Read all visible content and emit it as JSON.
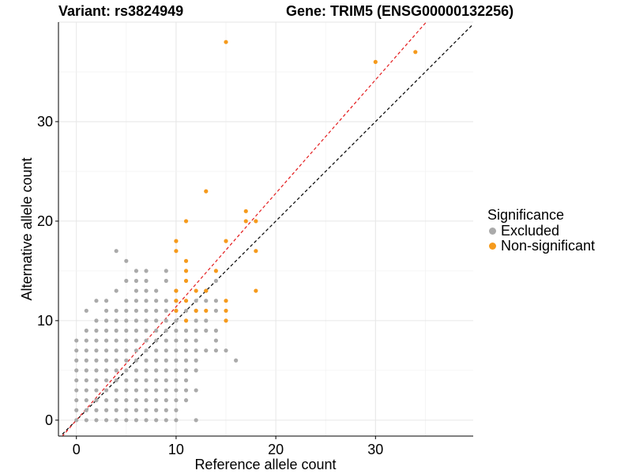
{
  "title_left": "Variant: rs3824949",
  "title_right": "Gene: TRIM5 (ENSG00000132256)",
  "chart_data": {
    "type": "scatter",
    "xlabel": "Reference allele count",
    "ylabel": "Alternative allele count",
    "xlim": [
      -1.8,
      39.8
    ],
    "ylim": [
      -1.6,
      40
    ],
    "x_ticks": [
      0,
      10,
      20,
      30
    ],
    "y_ticks": [
      0,
      10,
      20,
      30
    ],
    "x_tick_labels": [
      "0",
      "10",
      "20",
      "30"
    ],
    "y_tick_labels": [
      "0",
      "10",
      "20",
      "30"
    ],
    "grid": true,
    "legend": {
      "title": "Significance",
      "placement": "right",
      "entries": [
        {
          "label": "Excluded",
          "color": "#aaaaaa"
        },
        {
          "label": "Non-significant",
          "color": "#f59a1c"
        }
      ]
    },
    "reference_lines": [
      {
        "slope": 1.0,
        "intercept": 0,
        "color": "#000000",
        "style": "dashed"
      },
      {
        "slope": 1.14,
        "intercept": 0,
        "color": "#e31a1c",
        "style": "dashed"
      }
    ],
    "series": [
      {
        "name": "Excluded",
        "color": "#aaaaaa",
        "points": [
          [
            0,
            0
          ],
          [
            0,
            1
          ],
          [
            0,
            2
          ],
          [
            0,
            3
          ],
          [
            0,
            4
          ],
          [
            0,
            5
          ],
          [
            0,
            6
          ],
          [
            0,
            7
          ],
          [
            0,
            8
          ],
          [
            1,
            0
          ],
          [
            1,
            1
          ],
          [
            1,
            2
          ],
          [
            1,
            3
          ],
          [
            1,
            4
          ],
          [
            1,
            5
          ],
          [
            1,
            6
          ],
          [
            1,
            7
          ],
          [
            1,
            8
          ],
          [
            1,
            9
          ],
          [
            1,
            11
          ],
          [
            2,
            0
          ],
          [
            2,
            1
          ],
          [
            2,
            2
          ],
          [
            2,
            3
          ],
          [
            2,
            4
          ],
          [
            2,
            5
          ],
          [
            2,
            6
          ],
          [
            2,
            7
          ],
          [
            2,
            8
          ],
          [
            2,
            9
          ],
          [
            2,
            10
          ],
          [
            2,
            12
          ],
          [
            3,
            0
          ],
          [
            3,
            1
          ],
          [
            3,
            2
          ],
          [
            3,
            3
          ],
          [
            3,
            4
          ],
          [
            3,
            5
          ],
          [
            3,
            6
          ],
          [
            3,
            7
          ],
          [
            3,
            8
          ],
          [
            3,
            9
          ],
          [
            3,
            10
          ],
          [
            3,
            11
          ],
          [
            3,
            12
          ],
          [
            4,
            0
          ],
          [
            4,
            1
          ],
          [
            4,
            2
          ],
          [
            4,
            3
          ],
          [
            4,
            4
          ],
          [
            4,
            5
          ],
          [
            4,
            6
          ],
          [
            4,
            7
          ],
          [
            4,
            8
          ],
          [
            4,
            9
          ],
          [
            4,
            10
          ],
          [
            4,
            11
          ],
          [
            4,
            13
          ],
          [
            4,
            17
          ],
          [
            5,
            0
          ],
          [
            5,
            1
          ],
          [
            5,
            2
          ],
          [
            5,
            3
          ],
          [
            5,
            4
          ],
          [
            5,
            5
          ],
          [
            5,
            6
          ],
          [
            5,
            7
          ],
          [
            5,
            8
          ],
          [
            5,
            9
          ],
          [
            5,
            10
          ],
          [
            5,
            11
          ],
          [
            5,
            12
          ],
          [
            5,
            14
          ],
          [
            5,
            16
          ],
          [
            6,
            0
          ],
          [
            6,
            1
          ],
          [
            6,
            2
          ],
          [
            6,
            3
          ],
          [
            6,
            4
          ],
          [
            6,
            5
          ],
          [
            6,
            6
          ],
          [
            6,
            7
          ],
          [
            6,
            8
          ],
          [
            6,
            9
          ],
          [
            6,
            10
          ],
          [
            6,
            11
          ],
          [
            6,
            12
          ],
          [
            6,
            13
          ],
          [
            6,
            14
          ],
          [
            6,
            15
          ],
          [
            7,
            0
          ],
          [
            7,
            1
          ],
          [
            7,
            2
          ],
          [
            7,
            3
          ],
          [
            7,
            4
          ],
          [
            7,
            5
          ],
          [
            7,
            6
          ],
          [
            7,
            7
          ],
          [
            7,
            8
          ],
          [
            7,
            9
          ],
          [
            7,
            10
          ],
          [
            7,
            11
          ],
          [
            7,
            12
          ],
          [
            7,
            13
          ],
          [
            7,
            14
          ],
          [
            7,
            15
          ],
          [
            8,
            0
          ],
          [
            8,
            1
          ],
          [
            8,
            2
          ],
          [
            8,
            3
          ],
          [
            8,
            4
          ],
          [
            8,
            5
          ],
          [
            8,
            6
          ],
          [
            8,
            7
          ],
          [
            8,
            8
          ],
          [
            8,
            9
          ],
          [
            8,
            10
          ],
          [
            8,
            11
          ],
          [
            8,
            12
          ],
          [
            8,
            13
          ],
          [
            9,
            0
          ],
          [
            9,
            1
          ],
          [
            9,
            2
          ],
          [
            9,
            3
          ],
          [
            9,
            4
          ],
          [
            9,
            5
          ],
          [
            9,
            6
          ],
          [
            9,
            7
          ],
          [
            9,
            8
          ],
          [
            9,
            9
          ],
          [
            9,
            10
          ],
          [
            9,
            11
          ],
          [
            9,
            12
          ],
          [
            9,
            14
          ],
          [
            9,
            15
          ],
          [
            10,
            0
          ],
          [
            10,
            1
          ],
          [
            10,
            2
          ],
          [
            10,
            3
          ],
          [
            10,
            4
          ],
          [
            10,
            5
          ],
          [
            10,
            6
          ],
          [
            10,
            7
          ],
          [
            10,
            8
          ],
          [
            10,
            9
          ],
          [
            10,
            10
          ],
          [
            10,
            11
          ],
          [
            10,
            12
          ],
          [
            10,
            13
          ],
          [
            11,
            2
          ],
          [
            11,
            3
          ],
          [
            11,
            4
          ],
          [
            11,
            5
          ],
          [
            11,
            6
          ],
          [
            11,
            7
          ],
          [
            11,
            8
          ],
          [
            11,
            9
          ],
          [
            11,
            11
          ],
          [
            12,
            0
          ],
          [
            12,
            3
          ],
          [
            12,
            5
          ],
          [
            12,
            6
          ],
          [
            12,
            7
          ],
          [
            12,
            8
          ],
          [
            12,
            9
          ],
          [
            12,
            10
          ],
          [
            12,
            11
          ],
          [
            12,
            12
          ],
          [
            13,
            7
          ],
          [
            13,
            9
          ],
          [
            13,
            10
          ],
          [
            13,
            12
          ],
          [
            13,
            13
          ],
          [
            14,
            7
          ],
          [
            14,
            8
          ],
          [
            14,
            9
          ],
          [
            14,
            11
          ],
          [
            14,
            12
          ],
          [
            14,
            14
          ],
          [
            15,
            7
          ],
          [
            16,
            6
          ]
        ]
      },
      {
        "name": "Non-significant",
        "color": "#f59a1c",
        "points": [
          [
            10,
            11
          ],
          [
            10,
            12
          ],
          [
            10,
            13
          ],
          [
            10,
            17
          ],
          [
            10,
            18
          ],
          [
            11,
            10
          ],
          [
            11,
            12
          ],
          [
            11,
            14
          ],
          [
            11,
            15
          ],
          [
            11,
            16
          ],
          [
            11,
            20
          ],
          [
            12,
            11
          ],
          [
            12,
            13
          ],
          [
            13,
            11
          ],
          [
            13,
            13
          ],
          [
            13,
            23
          ],
          [
            14,
            15
          ],
          [
            15,
            10
          ],
          [
            15,
            11
          ],
          [
            15,
            12
          ],
          [
            15,
            18
          ],
          [
            15,
            38
          ],
          [
            17,
            20
          ],
          [
            17,
            21
          ],
          [
            18,
            13
          ],
          [
            18,
            17
          ],
          [
            18,
            20
          ],
          [
            30,
            36
          ],
          [
            34,
            37
          ]
        ]
      }
    ]
  }
}
